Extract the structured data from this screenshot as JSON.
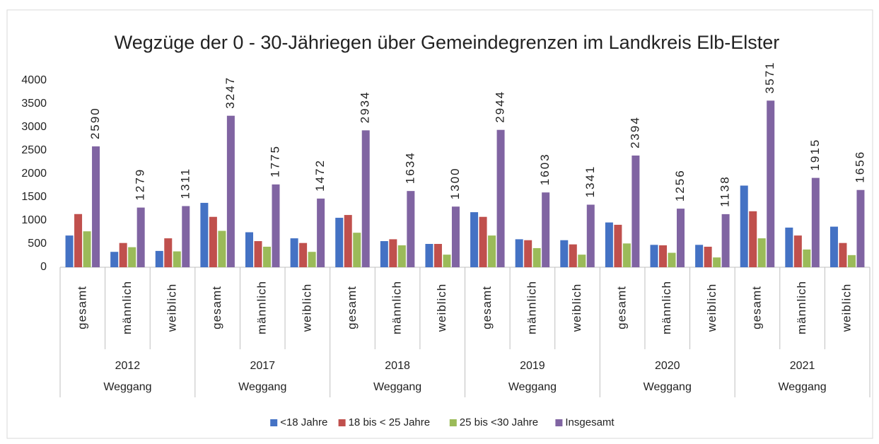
{
  "chart_data": {
    "type": "bar",
    "title": "Wegzüge der 0 - 30-Jähriegen über Gemeindegrenzen  im Landkreis Elb-Elster",
    "categories": [
      "gesamt",
      "männlich",
      "weiblich",
      "gesamt",
      "männlich",
      "weiblich",
      "gesamt",
      "männlich",
      "weiblich",
      "gesamt",
      "männlich",
      "weiblich",
      "gesamt",
      "männlich",
      "weiblich",
      "gesamt",
      "männlich",
      "weiblich"
    ],
    "groups": [
      {
        "label": "2012",
        "sublabel": "Weggang"
      },
      {
        "label": "2017",
        "sublabel": "Weggang"
      },
      {
        "label": "2018",
        "sublabel": "Weggang"
      },
      {
        "label": "2019",
        "sublabel": "Weggang"
      },
      {
        "label": "2020",
        "sublabel": "Weggang"
      },
      {
        "label": "2021",
        "sublabel": "Weggang"
      }
    ],
    "series": [
      {
        "name": "<18 Jahre",
        "color": "#4472c4",
        "values": [
          680,
          330,
          350,
          1380,
          750,
          620,
          1060,
          560,
          500,
          1180,
          600,
          580,
          960,
          480,
          480,
          1750,
          850,
          870
        ]
      },
      {
        "name": "18 bis < 25 Jahre",
        "color": "#c0504d",
        "values": [
          1140,
          520,
          620,
          1080,
          560,
          520,
          1120,
          600,
          500,
          1080,
          580,
          490,
          910,
          470,
          440,
          1200,
          680,
          520
        ]
      },
      {
        "name": "25 bis <30 Jahre",
        "color": "#9bbb59",
        "values": [
          770,
          430,
          340,
          780,
          440,
          330,
          740,
          470,
          270,
          680,
          410,
          270,
          510,
          310,
          210,
          620,
          380,
          260
        ]
      },
      {
        "name": "Insgesamt",
        "color": "#8064a2",
        "show_labels": true,
        "values": [
          2590,
          1279,
          1311,
          3247,
          1775,
          1472,
          2934,
          1634,
          1300,
          2944,
          1603,
          1341,
          2394,
          1256,
          1138,
          3571,
          1915,
          1656
        ]
      }
    ],
    "ylim": [
      0,
      4000
    ],
    "yticks": [
      0,
      500,
      1000,
      1500,
      2000,
      2500,
      3000,
      3500,
      4000
    ],
    "grid": false,
    "legend": "bottom"
  }
}
